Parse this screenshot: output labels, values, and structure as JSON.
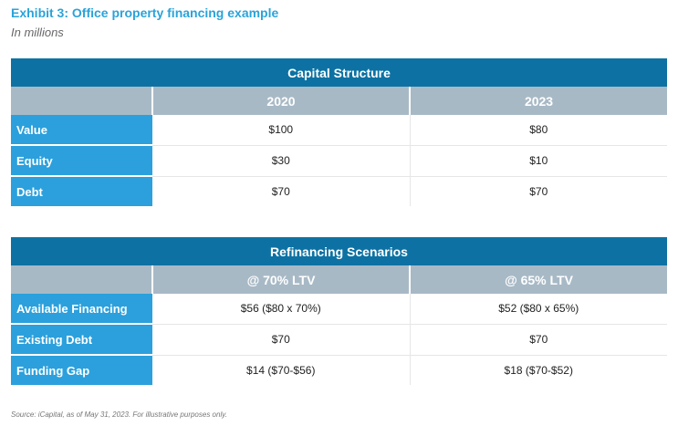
{
  "title": "Exhibit 3: Office property financing example",
  "subtitle": "In millions",
  "tables": [
    {
      "caption": "Capital Structure",
      "columns": [
        "",
        "2020",
        "2023"
      ],
      "rows": [
        {
          "label": "Value",
          "values": [
            "$100",
            "$80"
          ]
        },
        {
          "label": "Equity",
          "values": [
            "$30",
            "$10"
          ]
        },
        {
          "label": "Debt",
          "values": [
            "$70",
            "$70"
          ]
        }
      ]
    },
    {
      "caption": "Refinancing Scenarios",
      "columns": [
        "",
        "@ 70% LTV",
        "@ 65% LTV"
      ],
      "rows": [
        {
          "label": "Available Financing",
          "values": [
            "$56 ($80 x 70%)",
            "$52 ($80 x 65%)"
          ]
        },
        {
          "label": "Existing Debt",
          "values": [
            "$70",
            "$70"
          ]
        },
        {
          "label": "Funding Gap",
          "values": [
            "$14 ($70-$56)",
            "$18 ($70-$52)"
          ]
        }
      ]
    }
  ],
  "source": "Source: iCapital, as of May 31, 2023. For illustrative purposes only.",
  "colors": {
    "title": "#2aa3d9",
    "caption_bg": "#0d72a3",
    "header_bg": "#a8b9c6",
    "label_bg": "#2ba0dc"
  }
}
